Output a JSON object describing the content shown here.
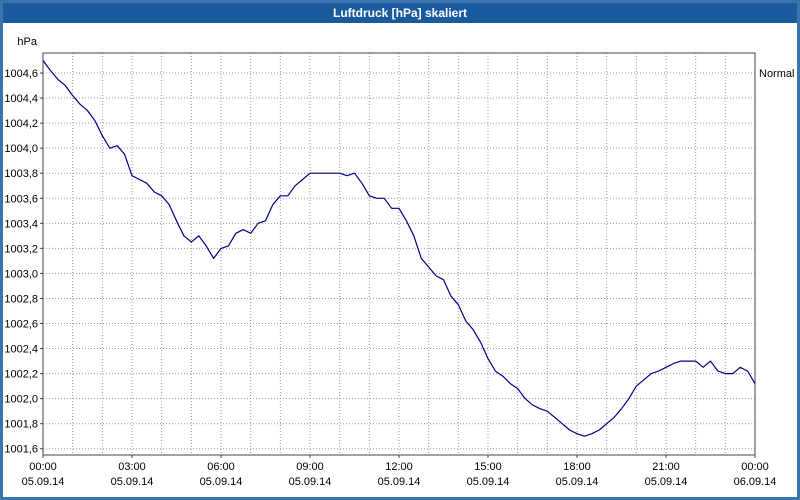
{
  "title": "Luftdruck [hPa] skaliert",
  "frame": {
    "titlebar_color": "#1a5b9e",
    "border_color": "#3a73ad",
    "title_text_color": "#ffffff"
  },
  "chart_data": {
    "type": "line",
    "title": "Luftdruck [hPa] skaliert",
    "ylabel": "hPa",
    "right_label": "Normal",
    "line_color": "#00008b",
    "grid_color": "#9a9a9a",
    "axis_color": "#444444",
    "grid": "on",
    "legend_position": "right-top",
    "xlim": [
      0,
      24
    ],
    "ylim": [
      1001.55,
      1004.76
    ],
    "x_grid_step_hours": 1,
    "y_ticks": [
      1004.6,
      1004.4,
      1004.2,
      1004.0,
      1003.8,
      1003.6,
      1003.4,
      1003.2,
      1003.0,
      1002.8,
      1002.6,
      1002.4,
      1002.2,
      1002.0,
      1001.8,
      1001.6
    ],
    "y_tick_labels": [
      "1004,6",
      "1004,4",
      "1004,2",
      "1004,0",
      "1003,8",
      "1003,6",
      "1003,4",
      "1003,2",
      "1003,0",
      "1002,8",
      "1002,6",
      "1002,4",
      "1002,2",
      "1002,0",
      "1001,8",
      "1001,6"
    ],
    "x_ticks": [
      {
        "hour": 0,
        "time": "00:00",
        "date": "05.09.14"
      },
      {
        "hour": 3,
        "time": "03:00",
        "date": "05.09.14"
      },
      {
        "hour": 6,
        "time": "06:00",
        "date": "05.09.14"
      },
      {
        "hour": 9,
        "time": "09:00",
        "date": "05.09.14"
      },
      {
        "hour": 12,
        "time": "12:00",
        "date": "05.09.14"
      },
      {
        "hour": 15,
        "time": "15:00",
        "date": "05.09.14"
      },
      {
        "hour": 18,
        "time": "18:00",
        "date": "05.09.14"
      },
      {
        "hour": 21,
        "time": "21:00",
        "date": "05.09.14"
      },
      {
        "hour": 24,
        "time": "00:00",
        "date": "06.09.14"
      }
    ],
    "series": [
      {
        "name": "Luftdruck",
        "points": [
          [
            0,
            1004.7
          ],
          [
            0.25,
            1004.62
          ],
          [
            0.5,
            1004.55
          ],
          [
            0.75,
            1004.5
          ],
          [
            1,
            1004.42
          ],
          [
            1.25,
            1004.35
          ],
          [
            1.5,
            1004.3
          ],
          [
            1.75,
            1004.22
          ],
          [
            2,
            1004.1
          ],
          [
            2.25,
            1004.0
          ],
          [
            2.5,
            1004.02
          ],
          [
            2.75,
            1003.95
          ],
          [
            3,
            1003.78
          ],
          [
            3.25,
            1003.75
          ],
          [
            3.5,
            1003.72
          ],
          [
            3.75,
            1003.65
          ],
          [
            4,
            1003.62
          ],
          [
            4.25,
            1003.55
          ],
          [
            4.5,
            1003.42
          ],
          [
            4.75,
            1003.3
          ],
          [
            5,
            1003.25
          ],
          [
            5.25,
            1003.3
          ],
          [
            5.5,
            1003.22
          ],
          [
            5.75,
            1003.12
          ],
          [
            6,
            1003.2
          ],
          [
            6.25,
            1003.22
          ],
          [
            6.5,
            1003.32
          ],
          [
            6.75,
            1003.35
          ],
          [
            7,
            1003.32
          ],
          [
            7.25,
            1003.4
          ],
          [
            7.5,
            1003.42
          ],
          [
            7.75,
            1003.55
          ],
          [
            8,
            1003.62
          ],
          [
            8.25,
            1003.62
          ],
          [
            8.5,
            1003.7
          ],
          [
            8.75,
            1003.75
          ],
          [
            9,
            1003.8
          ],
          [
            9.25,
            1003.8
          ],
          [
            9.5,
            1003.8
          ],
          [
            9.75,
            1003.8
          ],
          [
            10,
            1003.8
          ],
          [
            10.25,
            1003.78
          ],
          [
            10.5,
            1003.8
          ],
          [
            10.75,
            1003.72
          ],
          [
            11,
            1003.62
          ],
          [
            11.25,
            1003.6
          ],
          [
            11.5,
            1003.6
          ],
          [
            11.75,
            1003.52
          ],
          [
            12,
            1003.52
          ],
          [
            12.25,
            1003.42
          ],
          [
            12.5,
            1003.3
          ],
          [
            12.75,
            1003.12
          ],
          [
            13,
            1003.05
          ],
          [
            13.25,
            1002.98
          ],
          [
            13.5,
            1002.95
          ],
          [
            13.75,
            1002.82
          ],
          [
            14,
            1002.75
          ],
          [
            14.25,
            1002.62
          ],
          [
            14.5,
            1002.55
          ],
          [
            14.75,
            1002.45
          ],
          [
            15,
            1002.32
          ],
          [
            15.25,
            1002.22
          ],
          [
            15.5,
            1002.18
          ],
          [
            15.75,
            1002.12
          ],
          [
            16,
            1002.08
          ],
          [
            16.25,
            1002.0
          ],
          [
            16.5,
            1001.95
          ],
          [
            16.75,
            1001.92
          ],
          [
            17,
            1001.9
          ],
          [
            17.25,
            1001.85
          ],
          [
            17.5,
            1001.8
          ],
          [
            17.75,
            1001.75
          ],
          [
            18,
            1001.72
          ],
          [
            18.25,
            1001.7
          ],
          [
            18.5,
            1001.72
          ],
          [
            18.75,
            1001.75
          ],
          [
            19,
            1001.8
          ],
          [
            19.25,
            1001.85
          ],
          [
            19.5,
            1001.92
          ],
          [
            19.75,
            1002.0
          ],
          [
            20,
            1002.1
          ],
          [
            20.25,
            1002.15
          ],
          [
            20.5,
            1002.2
          ],
          [
            20.75,
            1002.22
          ],
          [
            21,
            1002.25
          ],
          [
            21.25,
            1002.28
          ],
          [
            21.5,
            1002.3
          ],
          [
            21.75,
            1002.3
          ],
          [
            22,
            1002.3
          ],
          [
            22.25,
            1002.25
          ],
          [
            22.5,
            1002.3
          ],
          [
            22.75,
            1002.22
          ],
          [
            23,
            1002.2
          ],
          [
            23.25,
            1002.2
          ],
          [
            23.5,
            1002.25
          ],
          [
            23.75,
            1002.22
          ],
          [
            24,
            1002.12
          ]
        ]
      }
    ]
  }
}
